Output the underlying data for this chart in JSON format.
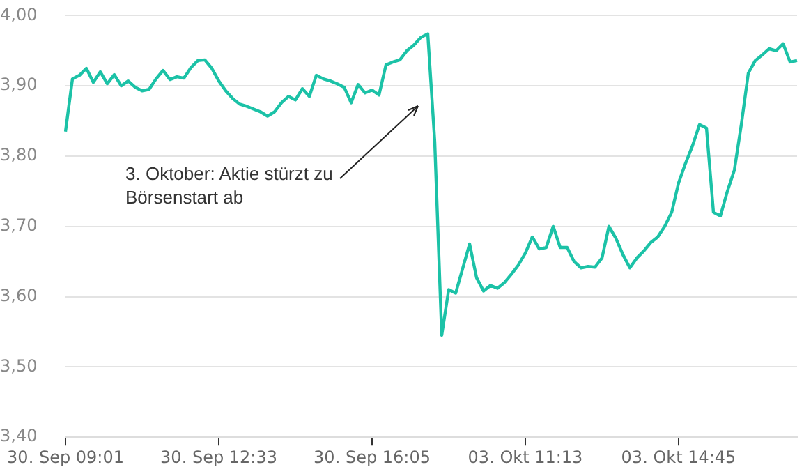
{
  "chart_data": {
    "type": "line",
    "annotations": [
      "3. Oktober: Aktie stürzt zu Börsenstart ab"
    ],
    "categories": [
      "30. Sep 09:01",
      null,
      null,
      null,
      null,
      null,
      null,
      null,
      null,
      null,
      null,
      null,
      null,
      null,
      null,
      null,
      null,
      null,
      null,
      null,
      null,
      null,
      "30. Sep 12:33",
      null,
      null,
      null,
      null,
      null,
      null,
      null,
      null,
      null,
      null,
      null,
      null,
      null,
      null,
      null,
      null,
      null,
      null,
      null,
      null,
      null,
      "30. Sep 16:05",
      null,
      null,
      null,
      null,
      null,
      null,
      null,
      null,
      null,
      null,
      null,
      null,
      null,
      null,
      null,
      null,
      null,
      null,
      null,
      null,
      null,
      "03. Okt 11:13",
      null,
      null,
      null,
      null,
      null,
      null,
      null,
      null,
      null,
      null,
      null,
      null,
      null,
      null,
      null,
      null,
      null,
      null,
      null,
      null,
      null,
      "03. Okt 14:45",
      null,
      null,
      null,
      null,
      null,
      null,
      null,
      null,
      null,
      null,
      null,
      null,
      null,
      null,
      null,
      null,
      null
    ],
    "series": [
      {
        "color": "#1cc2a7",
        "values": [
          3.835,
          3.91,
          3.915,
          3.925,
          3.905,
          3.92,
          3.903,
          3.916,
          3.9,
          3.907,
          3.898,
          3.893,
          3.895,
          3.91,
          3.922,
          3.909,
          3.913,
          3.911,
          3.926,
          3.936,
          3.937,
          3.925,
          3.907,
          3.893,
          3.882,
          3.874,
          3.871,
          3.867,
          3.863,
          3.857,
          3.863,
          3.876,
          3.885,
          3.88,
          3.896,
          3.885,
          3.915,
          3.91,
          3.907,
          3.903,
          3.898,
          3.876,
          3.902,
          3.89,
          3.894,
          3.887,
          3.93,
          3.934,
          3.937,
          3.95,
          3.958,
          3.969,
          3.974,
          3.82,
          3.545,
          3.61,
          3.605,
          3.64,
          3.675,
          3.627,
          3.608,
          3.616,
          3.612,
          3.62,
          3.632,
          3.645,
          3.662,
          3.685,
          3.668,
          3.67,
          3.7,
          3.67,
          3.67,
          3.65,
          3.641,
          3.643,
          3.642,
          3.655,
          3.7,
          3.683,
          3.66,
          3.641,
          3.655,
          3.665,
          3.677,
          3.685,
          3.7,
          3.72,
          3.762,
          3.79,
          3.815,
          3.845,
          3.84,
          3.72,
          3.715,
          3.75,
          3.78,
          3.845,
          3.918,
          3.936,
          3.944,
          3.953,
          3.95,
          3.96,
          3.934,
          3.936
        ]
      }
    ],
    "ylim": [
      3.4,
      4.0
    ],
    "yticks": [
      {
        "value": 3.4,
        "label": "3,40"
      },
      {
        "value": 3.5,
        "label": "3,50"
      },
      {
        "value": 3.6,
        "label": "3,60"
      },
      {
        "value": 3.7,
        "label": "3,70"
      },
      {
        "value": 3.8,
        "label": "3,80"
      },
      {
        "value": 3.9,
        "label": "3,90"
      },
      {
        "value": 4.0,
        "label": "4,00"
      }
    ],
    "grid": "y",
    "marker": "none",
    "line_style": "solid"
  }
}
